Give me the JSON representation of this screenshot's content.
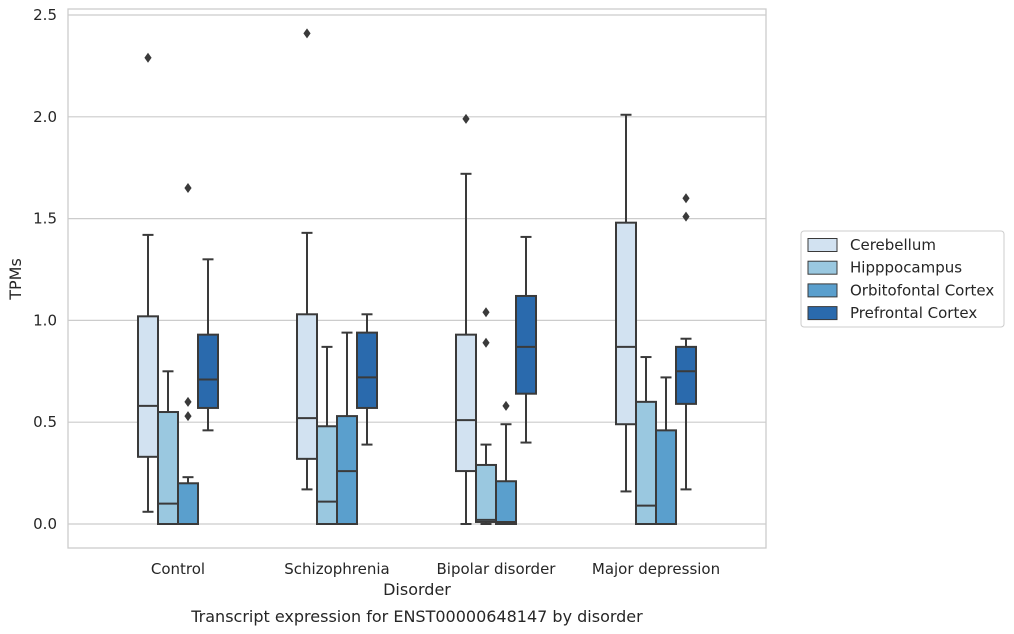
{
  "caption": "Transcript expression for ENST00000648147 by disorder",
  "chart_data": {
    "type": "box",
    "xlabel": "Disorder",
    "ylabel": "TPMs",
    "ylim": [
      -0.12,
      2.55
    ],
    "yticks": [
      "0.0",
      "0.5",
      "1.0",
      "1.5",
      "2.0",
      "2.5"
    ],
    "ytick_values": [
      0,
      0.5,
      1.0,
      1.5,
      2.0,
      2.5
    ],
    "grid": "horizontal",
    "legend_position": "right",
    "categories": [
      "Control",
      "Schizophrenia",
      "Bipolar disorder",
      "Major depression"
    ],
    "series": [
      {
        "name": "Cerebellum",
        "color": "#d2e2f1",
        "boxes": [
          {
            "whislo": 0.06,
            "q1": 0.33,
            "med": 0.58,
            "q3": 1.02,
            "whishi": 1.42,
            "fliers": [
              2.29
            ]
          },
          {
            "whislo": 0.17,
            "q1": 0.32,
            "med": 0.52,
            "q3": 1.03,
            "whishi": 1.43,
            "fliers": [
              2.41
            ]
          },
          {
            "whislo": 0.0,
            "q1": 0.26,
            "med": 0.51,
            "q3": 0.93,
            "whishi": 1.72,
            "fliers": [
              1.99
            ]
          },
          {
            "whislo": 0.16,
            "q1": 0.49,
            "med": 0.87,
            "q3": 1.48,
            "whishi": 2.01,
            "fliers": []
          }
        ]
      },
      {
        "name": "Hipppocampus",
        "color": "#9ac8e0",
        "boxes": [
          {
            "whislo": 0.0,
            "q1": 0.0,
            "med": 0.1,
            "q3": 0.55,
            "whishi": 0.75,
            "fliers": []
          },
          {
            "whislo": 0.0,
            "q1": 0.0,
            "med": 0.11,
            "q3": 0.48,
            "whishi": 0.87,
            "fliers": []
          },
          {
            "whislo": 0.0,
            "q1": 0.01,
            "med": 0.02,
            "q3": 0.29,
            "whishi": 0.39,
            "fliers": [
              0.89,
              1.04
            ]
          },
          {
            "whislo": 0.0,
            "q1": 0.0,
            "med": 0.09,
            "q3": 0.6,
            "whishi": 0.82,
            "fliers": []
          }
        ]
      },
      {
        "name": "Orbitofontal Cortex",
        "color": "#5a9fcd",
        "boxes": [
          {
            "whislo": 0.0,
            "q1": 0.0,
            "med": 0.0,
            "q3": 0.2,
            "whishi": 0.23,
            "fliers": [
              0.53,
              0.6,
              1.65
            ]
          },
          {
            "whislo": 0.0,
            "q1": 0.0,
            "med": 0.26,
            "q3": 0.53,
            "whishi": 0.94,
            "fliers": []
          },
          {
            "whislo": 0.0,
            "q1": 0.0,
            "med": 0.01,
            "q3": 0.21,
            "whishi": 0.49,
            "fliers": [
              0.58
            ]
          },
          {
            "whislo": 0.0,
            "q1": 0.0,
            "med": 0.0,
            "q3": 0.46,
            "whishi": 0.72,
            "fliers": []
          }
        ]
      },
      {
        "name": "Prefrontal Cortex",
        "color": "#2a6aad",
        "boxes": [
          {
            "whislo": 0.46,
            "q1": 0.57,
            "med": 0.71,
            "q3": 0.93,
            "whishi": 1.3,
            "fliers": []
          },
          {
            "whislo": 0.39,
            "q1": 0.57,
            "med": 0.72,
            "q3": 0.94,
            "whishi": 1.03,
            "fliers": []
          },
          {
            "whislo": 0.4,
            "q1": 0.64,
            "med": 0.87,
            "q3": 1.12,
            "whishi": 1.41,
            "fliers": []
          },
          {
            "whislo": 0.17,
            "q1": 0.59,
            "med": 0.75,
            "q3": 0.87,
            "whishi": 0.91,
            "fliers": [
              1.51,
              1.6
            ]
          }
        ]
      }
    ]
  }
}
